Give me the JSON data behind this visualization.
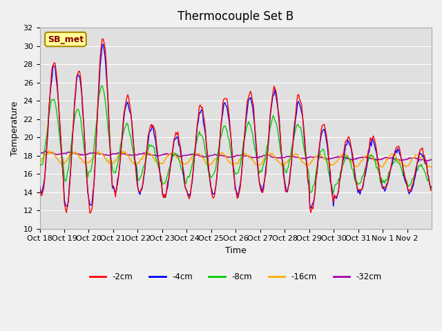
{
  "title": "Thermocouple Set B",
  "xlabel": "Time",
  "ylabel": "Temperature",
  "annotation": "SB_met",
  "ylim": [
    10,
    32
  ],
  "yticks": [
    10,
    12,
    14,
    16,
    18,
    20,
    22,
    24,
    26,
    28,
    30,
    32
  ],
  "xtick_labels": [
    "Oct 18",
    "Oct 19",
    "Oct 20",
    "Oct 21",
    "Oct 22",
    "Oct 23",
    "Oct 24",
    "Oct 25",
    "Oct 26",
    "Oct 27",
    "Oct 28",
    "Oct 29",
    "Oct 30",
    "Oct 31",
    "Nov 1",
    "Nov 2"
  ],
  "colors": {
    "-2cm": "#ff0000",
    "-4cm": "#0000ff",
    "-8cm": "#00cc00",
    "-16cm": "#ffaa00",
    "-32cm": "#aa00aa"
  },
  "legend_labels": [
    "-2cm",
    "-4cm",
    "-8cm",
    "-16cm",
    "-32cm"
  ],
  "fig_bg_color": "#f0f0f0",
  "ax_bg_color": "#e0e0e0",
  "title_fontsize": 12,
  "annotation_bg": "#ffff99",
  "annotation_border": "#aa8800",
  "peak_heights": [
    28.5,
    27.5,
    31.0,
    24.5,
    21.5,
    20.5,
    23.5,
    24.5,
    25.0,
    25.5,
    24.5,
    21.5,
    20.0,
    20.0,
    19.0,
    18.5
  ],
  "trough_heights": [
    13.5,
    12.0,
    11.8,
    14.0,
    14.0,
    13.5,
    13.5,
    13.5,
    13.5,
    14.0,
    14.0,
    12.0,
    13.5,
    14.0,
    14.5,
    14.0
  ]
}
